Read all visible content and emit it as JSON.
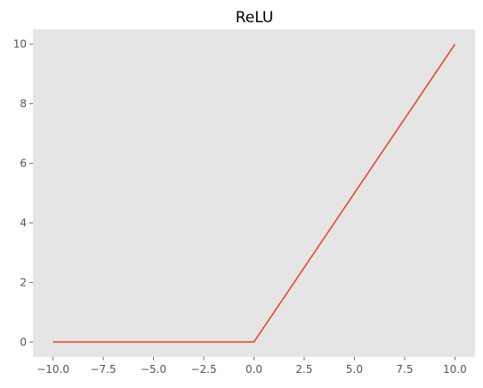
{
  "chart_data": {
    "type": "line",
    "title": "ReLU",
    "xlabel": "",
    "ylabel": "",
    "xlim": [
      -11,
      11
    ],
    "ylim": [
      -0.5,
      10.5
    ],
    "xticks": [
      -10.0,
      -7.5,
      -5.0,
      -2.5,
      0.0,
      2.5,
      5.0,
      7.5,
      10.0
    ],
    "xtick_labels": [
      "−10.0",
      "−7.5",
      "−5.0",
      "−2.5",
      "0.0",
      "2.5",
      "5.0",
      "7.5",
      "10.0"
    ],
    "yticks": [
      0,
      2,
      4,
      6,
      8,
      10
    ],
    "ytick_labels": [
      "0",
      "2",
      "4",
      "6",
      "8",
      "10"
    ],
    "grid": false,
    "background_color": "#e5e5e5",
    "series": [
      {
        "color": "#e24a33",
        "x": [
          -10,
          0,
          10
        ],
        "y": [
          0,
          0,
          10
        ]
      }
    ]
  }
}
